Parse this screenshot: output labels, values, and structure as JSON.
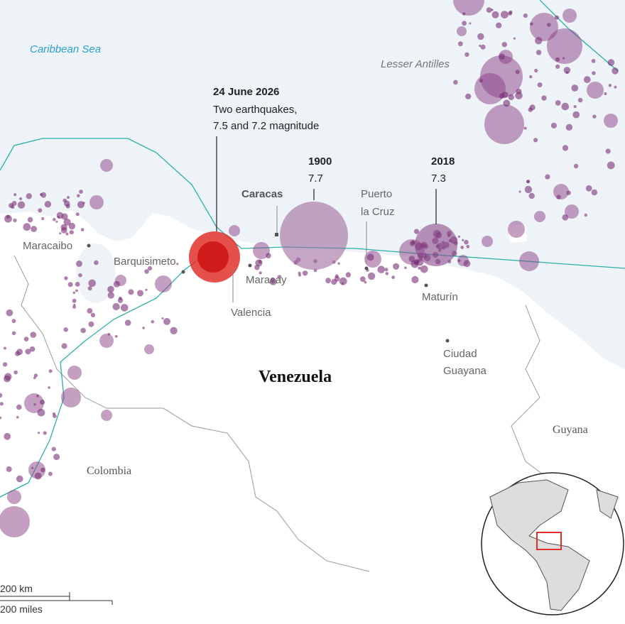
{
  "map": {
    "water_labels": [
      "Caribbean Sea",
      "Lesser Antilles"
    ],
    "annotations": [
      {
        "title": "24 June 2026",
        "lines": [
          "Two earthquakes,",
          "7.5 and 7.2 magnitude"
        ]
      },
      {
        "title": "1900",
        "magnitude": 7.7
      },
      {
        "title": "2018",
        "magnitude": 7.3
      }
    ],
    "capital": "Caracas",
    "cities": [
      "Maracaibo",
      "Barquisimeto",
      "Maracay",
      "Valencia",
      "Puerto",
      "la Cruz",
      "Maturín",
      "Ciudad",
      "Guayana"
    ],
    "countries": [
      "Venezuela",
      "Colombia",
      "Guyana"
    ],
    "scale": [
      "200 km",
      "200 miles"
    ]
  }
}
